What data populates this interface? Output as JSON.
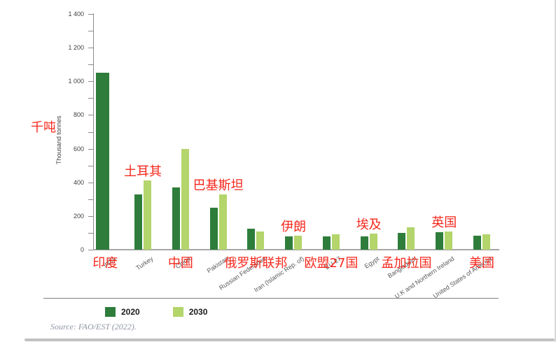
{
  "chart_data": {
    "type": "bar",
    "title": "",
    "ylabel": "Thousand tonnes",
    "ylabel_cn": "千吨",
    "ylim": [
      0,
      1400
    ],
    "ytick_minor_step": 100,
    "ytick_major": [
      {
        "v": 1400,
        "label": "1 400"
      },
      {
        "v": 1200,
        "label": "1 200"
      },
      {
        "v": 1000,
        "label": "1 000"
      },
      {
        "v": 800,
        "label": "800"
      },
      {
        "v": 600,
        "label": "600"
      },
      {
        "v": 400,
        "label": "400"
      },
      {
        "v": 200,
        "label": "200"
      },
      {
        "v": 0,
        "label": "0"
      }
    ],
    "series": [
      {
        "name": "2020",
        "color": "#2e7d3b"
      },
      {
        "name": "2030",
        "color": "#b3d56b"
      }
    ],
    "categories": [
      {
        "label": "India",
        "cn": "印度",
        "cn_pos": "below",
        "v2020": 1050,
        "v2030": null
      },
      {
        "label": "Turkey",
        "cn": "土耳其",
        "cn_pos": "above",
        "v2020": 330,
        "v2030": 410
      },
      {
        "label": "China",
        "cn": "中国",
        "cn_pos": "below",
        "v2020": 370,
        "v2030": 600
      },
      {
        "label": "Pakistan",
        "cn": "巴基斯坦",
        "cn_pos": "above",
        "v2020": 250,
        "v2030": 330
      },
      {
        "label": "Russian Federation",
        "cn": "俄罗斯联邦",
        "cn_pos": "below",
        "v2020": 125,
        "v2030": 110
      },
      {
        "label": "Iran (Islamic Rep. of)",
        "cn": "伊朗",
        "cn_pos": "above",
        "v2020": 80,
        "v2030": 85
      },
      {
        "label": "EU-27",
        "cn": "欧盟27国",
        "cn_pos": "below",
        "v2020": 80,
        "v2030": 90
      },
      {
        "label": "Egypt",
        "cn": "埃及",
        "cn_pos": "above",
        "v2020": 80,
        "v2030": 95
      },
      {
        "label": "Bangladesh",
        "cn": "孟加拉国",
        "cn_pos": "below",
        "v2020": 100,
        "v2030": 135
      },
      {
        "label": "U.K and Northern Ireland",
        "cn": "英国",
        "cn_pos": "above",
        "v2020": 105,
        "v2030": 110
      },
      {
        "label": "United States of America",
        "cn": "美国",
        "cn_pos": "below",
        "v2020": 85,
        "v2030": 90
      }
    ],
    "legend": [
      "2020",
      "2030"
    ],
    "legend_position": "bottom",
    "grid": false,
    "source": "Source: FAO/EST (2022)."
  },
  "colors": {
    "bar_2020": "#2e7d3b",
    "bar_2030": "#b3d56b",
    "annotation_red": "#f5281c",
    "axis": "#8c8c8c",
    "baseline": "#a6a6a6",
    "tick_text": "#404040",
    "xlabel_text": "#595959",
    "source_text": "#8f95a3"
  }
}
